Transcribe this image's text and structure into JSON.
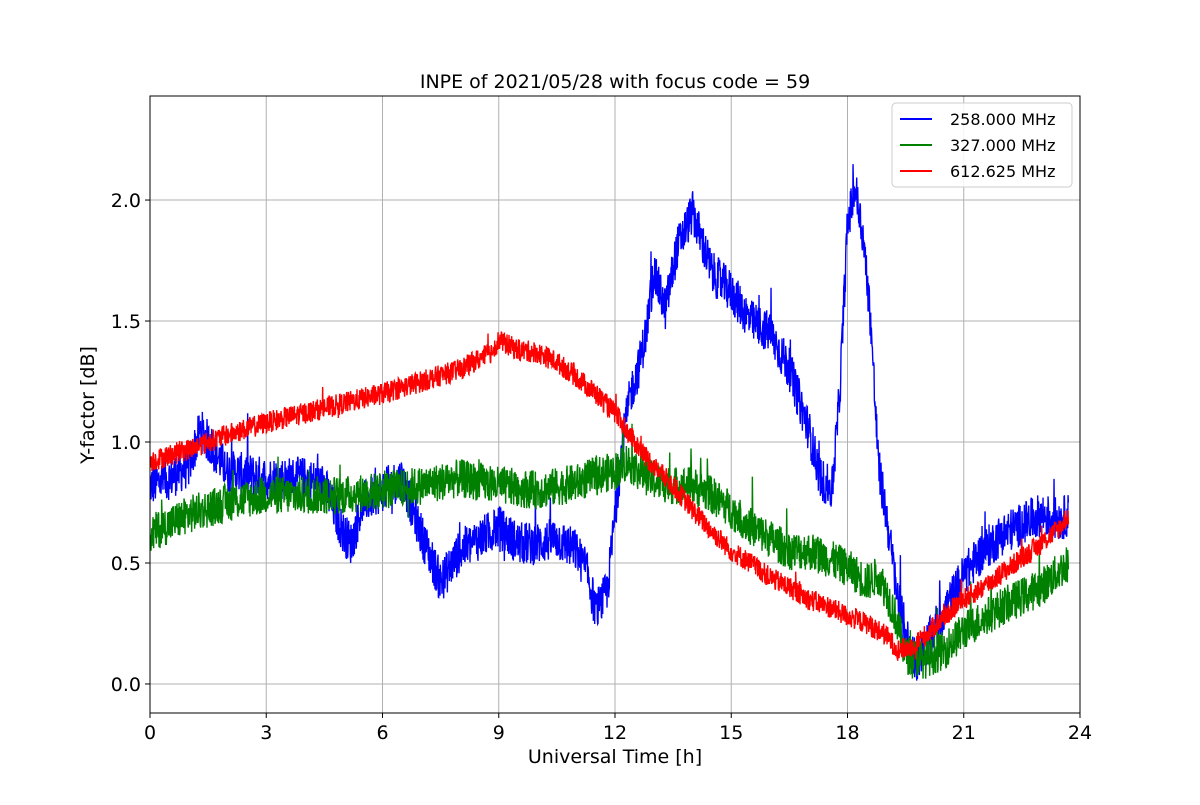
{
  "chart_data": {
    "type": "line",
    "title": "INPE of 2021/05/28 with focus code = 59",
    "xlabel": "Universal Time [h]",
    "ylabel": "Y-factor [dB]",
    "xlim": [
      0,
      24
    ],
    "ylim": [
      -0.12,
      2.43
    ],
    "xticks": [
      0,
      3,
      6,
      9,
      12,
      15,
      18,
      21,
      24
    ],
    "xtick_labels": [
      "0",
      "3",
      "6",
      "9",
      "12",
      "15",
      "18",
      "21",
      "24"
    ],
    "yticks": [
      0.0,
      0.5,
      1.0,
      1.5,
      2.0
    ],
    "ytick_labels": [
      "0.0",
      "0.5",
      "1.0",
      "1.5",
      "2.0"
    ],
    "grid": true,
    "legend_position": "top-right",
    "series": [
      {
        "name": "258.000 MHz",
        "color": "#0000ff",
        "noise": 0.09,
        "x": [
          0,
          0.5,
          1,
          1.3,
          2,
          3,
          4,
          4.5,
          5,
          5.2,
          5.5,
          6,
          6.5,
          7,
          7.3,
          7.5,
          8,
          8.5,
          9,
          9.5,
          10,
          10.5,
          11,
          11.3,
          11.5,
          11.8,
          12,
          12.2,
          12.4,
          12.6,
          12.8,
          13,
          13.3,
          13.6,
          14,
          14.2,
          14.5,
          15,
          15.5,
          16,
          16.5,
          17,
          17.3,
          17.6,
          17.8,
          18,
          18.2,
          18.4,
          18.6,
          18.8,
          19,
          19.3,
          19.6,
          19.8,
          20,
          20.5,
          21,
          21.5,
          22,
          22.5,
          23,
          23.5,
          23.7
        ],
        "y": [
          0.82,
          0.85,
          0.9,
          1.05,
          0.88,
          0.85,
          0.85,
          0.82,
          0.62,
          0.58,
          0.75,
          0.8,
          0.85,
          0.62,
          0.5,
          0.42,
          0.55,
          0.6,
          0.65,
          0.58,
          0.58,
          0.6,
          0.55,
          0.45,
          0.3,
          0.38,
          0.7,
          1.0,
          1.2,
          1.3,
          1.45,
          1.7,
          1.55,
          1.8,
          1.95,
          1.85,
          1.7,
          1.62,
          1.5,
          1.45,
          1.3,
          1.05,
          0.85,
          0.8,
          1.2,
          1.9,
          2.05,
          1.85,
          1.5,
          0.9,
          0.7,
          0.35,
          0.15,
          0.1,
          0.15,
          0.3,
          0.45,
          0.55,
          0.62,
          0.66,
          0.7,
          0.68,
          0.7
        ]
      },
      {
        "name": "327.000 MHz",
        "color": "#008000",
        "noise": 0.08,
        "x": [
          0,
          1,
          2,
          3,
          4,
          5,
          6,
          7,
          8,
          9,
          10,
          11,
          11.5,
          12,
          12.3,
          12.6,
          13,
          13.5,
          14,
          14.5,
          15,
          15.5,
          16,
          16.5,
          17,
          17.5,
          18,
          18.5,
          18.8,
          19,
          19.2,
          19.5,
          20,
          20.5,
          21,
          22,
          23,
          23.7
        ],
        "y": [
          0.62,
          0.7,
          0.75,
          0.78,
          0.78,
          0.78,
          0.8,
          0.82,
          0.85,
          0.82,
          0.8,
          0.83,
          0.86,
          0.88,
          0.92,
          0.88,
          0.84,
          0.82,
          0.82,
          0.78,
          0.72,
          0.65,
          0.6,
          0.55,
          0.55,
          0.52,
          0.48,
          0.42,
          0.45,
          0.38,
          0.3,
          0.12,
          0.1,
          0.14,
          0.22,
          0.32,
          0.4,
          0.5
        ]
      },
      {
        "name": "612.625 MHz",
        "color": "#ff0000",
        "noise": 0.045,
        "x": [
          0,
          1,
          2,
          3,
          4,
          5,
          6,
          7,
          8,
          8.8,
          9,
          9.5,
          10,
          10.5,
          11,
          11.5,
          12,
          12.5,
          13,
          13.5,
          14,
          14.5,
          15,
          15.5,
          16,
          16.5,
          17,
          17.5,
          18,
          18.5,
          19,
          19.3,
          19.6,
          20,
          20.5,
          21,
          21.5,
          22,
          22.5,
          23,
          23.5,
          23.7
        ],
        "y": [
          0.92,
          0.97,
          1.03,
          1.08,
          1.12,
          1.16,
          1.2,
          1.25,
          1.3,
          1.37,
          1.42,
          1.38,
          1.37,
          1.33,
          1.27,
          1.2,
          1.12,
          1.0,
          0.9,
          0.82,
          0.72,
          0.63,
          0.55,
          0.5,
          0.44,
          0.4,
          0.35,
          0.32,
          0.28,
          0.25,
          0.2,
          0.14,
          0.15,
          0.2,
          0.28,
          0.35,
          0.4,
          0.46,
          0.52,
          0.58,
          0.65,
          0.7
        ]
      }
    ]
  }
}
